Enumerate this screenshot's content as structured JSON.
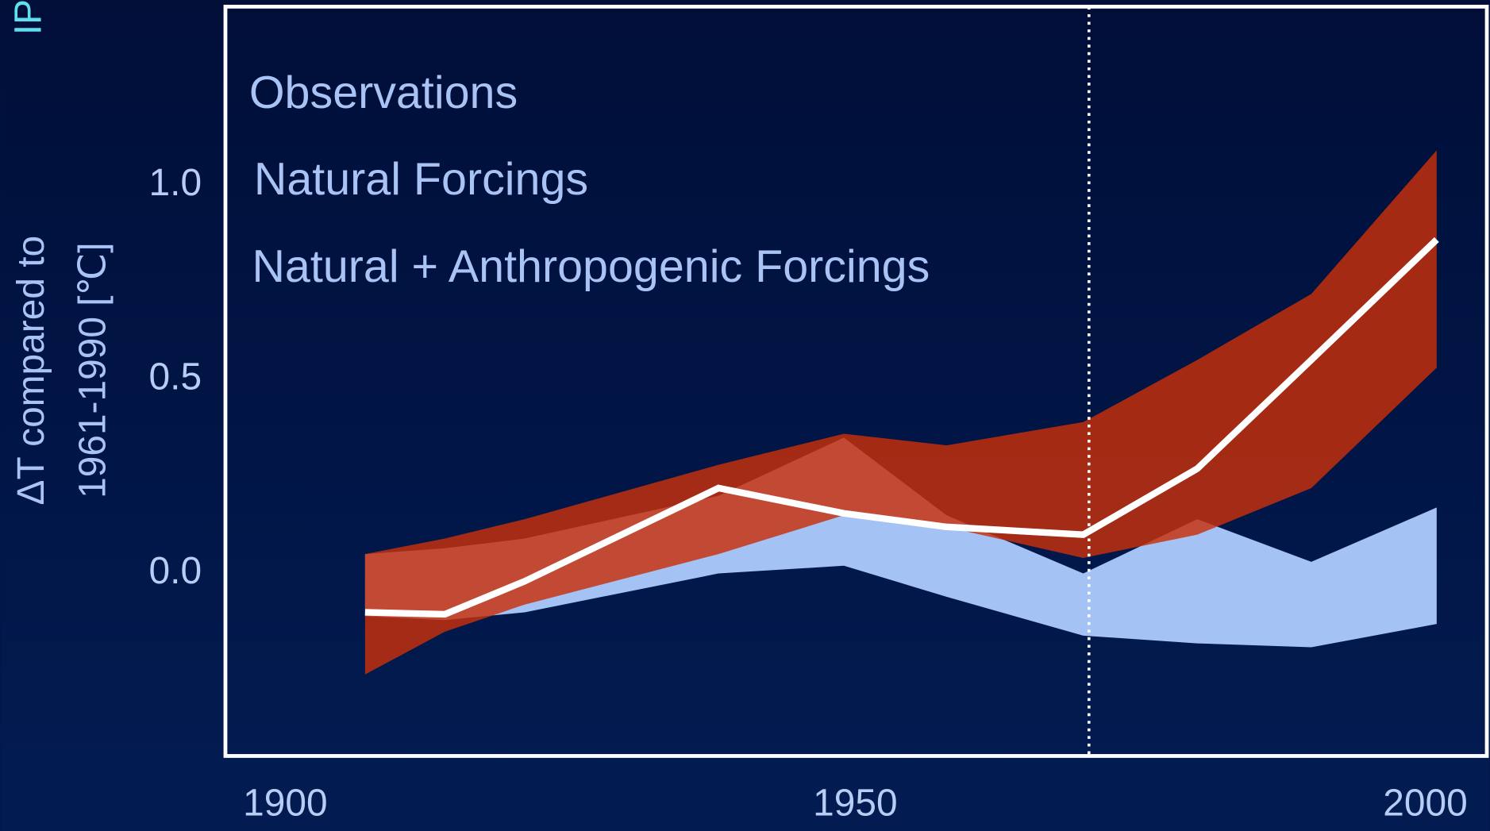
{
  "chart_data": {
    "type": "line",
    "corner_text": "IP",
    "y_label": [
      "ΔT compared to",
      "1961-1990 [℃]"
    ],
    "x": [
      1907,
      1914,
      1921,
      1938,
      1949,
      1958,
      1970,
      1980,
      1990,
      2001
    ],
    "series": [
      {
        "name": "Observations",
        "color": "#ffffff",
        "values": [
          -0.1,
          -0.105,
          -0.02,
          0.22,
          0.155,
          0.12,
          0.1,
          0.27,
          0.55,
          0.86
        ]
      },
      {
        "name": "Natural Forcings",
        "color": "#a4c2f4",
        "upper": [
          0.05,
          0.065,
          0.09,
          0.2,
          0.35,
          0.15,
          0.0,
          0.14,
          0.03,
          0.17
        ],
        "lower": [
          -0.11,
          -0.12,
          -0.1,
          0.0,
          0.02,
          -0.06,
          -0.16,
          -0.18,
          -0.19,
          -0.13
        ]
      },
      {
        "name": "Natural + Anthropogenic Forcings",
        "color": "#c8300a",
        "upper": [
          0.05,
          0.09,
          0.14,
          0.28,
          0.36,
          0.33,
          0.39,
          0.55,
          0.72,
          1.09
        ],
        "lower": [
          -0.26,
          -0.15,
          -0.08,
          0.05,
          0.15,
          0.12,
          0.04,
          0.1,
          0.22,
          0.53
        ]
      }
    ],
    "reference_x": 1970.5,
    "xlim": [
      1894.75,
      2005.4
    ],
    "xticks": [
      1900,
      1950,
      2000
    ],
    "ylim": [
      -0.47,
      1.46
    ],
    "yticks": [
      {
        "value": 0,
        "label": "0.0"
      },
      {
        "value": 0.5,
        "label": "0.5"
      },
      {
        "value": 1,
        "label": "1.0"
      }
    ]
  }
}
